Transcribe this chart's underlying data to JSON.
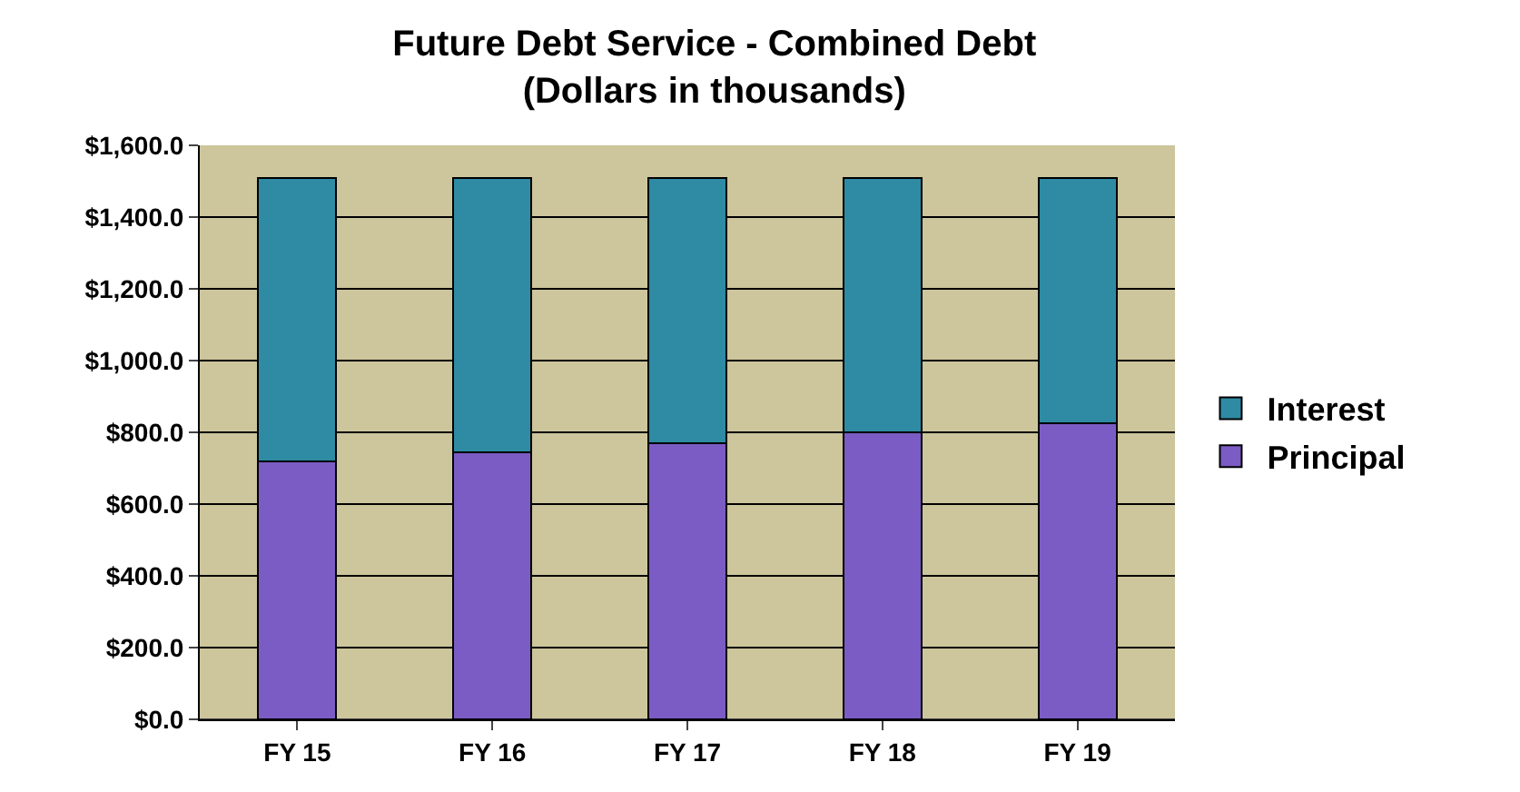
{
  "chart_data": {
    "type": "bar",
    "title": "Future Debt Service - Combined Debt\n(Dollars in thousands)",
    "categories": [
      "FY 15",
      "FY 16",
      "FY 17",
      "FY 18",
      "FY 19"
    ],
    "stacked": true,
    "series": [
      {
        "name": "Principal",
        "color": "#7b5cc4",
        "values": [
          720,
          745,
          770,
          800,
          825
        ]
      },
      {
        "name": "Interest",
        "color": "#2e8ba3",
        "values": [
          790,
          765,
          740,
          710,
          685
        ]
      }
    ],
    "ylim": [
      0,
      1600
    ],
    "yticks": [
      {
        "value": 0,
        "label": "$0.0"
      },
      {
        "value": 200,
        "label": "$200.0"
      },
      {
        "value": 400,
        "label": "$400.0"
      },
      {
        "value": 600,
        "label": "$600.0"
      },
      {
        "value": 800,
        "label": "$800.0"
      },
      {
        "value": 1000,
        "label": "$1,000.0"
      },
      {
        "value": 1200,
        "label": "$1,200.0"
      },
      {
        "value": 1400,
        "label": "$1,400.0"
      },
      {
        "value": 1600,
        "label": "$1,600.0"
      }
    ],
    "grid": "y",
    "legend": "right"
  }
}
